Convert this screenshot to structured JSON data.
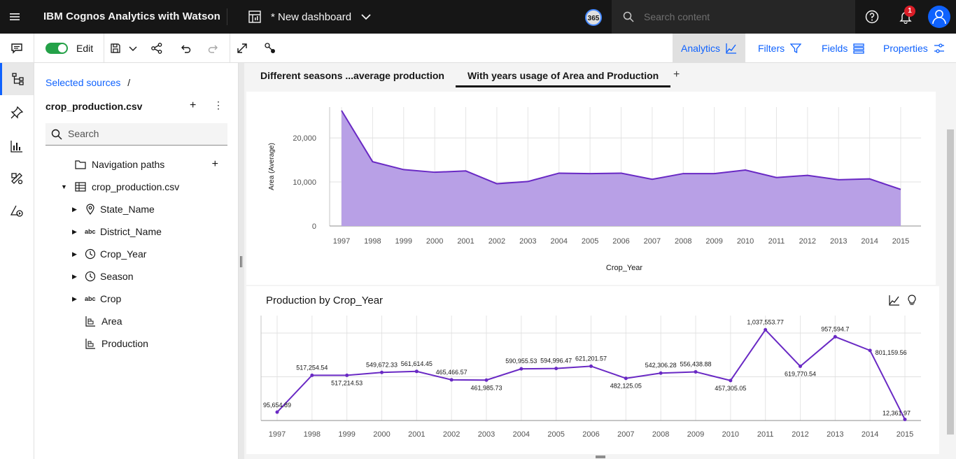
{
  "header": {
    "brand": "IBM Cognos Analytics with Watson",
    "dashboard_title": "* New dashboard",
    "badge_365": "365",
    "search_placeholder": "Search content",
    "notification_count": "1"
  },
  "toolbar": {
    "edit_label": "Edit",
    "analytics_label": "Analytics",
    "filters_label": "Filters",
    "fields_label": "Fields",
    "properties_label": "Properties"
  },
  "sources": {
    "breadcrumb_link": "Selected sources",
    "breadcrumb_sep": "/",
    "source_name": "crop_production.csv",
    "search_placeholder": "Search",
    "navigation_paths": "Navigation paths",
    "table_name": "crop_production.csv",
    "fields": [
      {
        "label": "State_Name",
        "icon": "location-icon"
      },
      {
        "label": "District_Name",
        "icon": "abc-icon"
      },
      {
        "label": "Crop_Year",
        "icon": "clock-icon"
      },
      {
        "label": "Season",
        "icon": "clock-icon"
      },
      {
        "label": "Crop",
        "icon": "abc-icon"
      },
      {
        "label": "Area",
        "icon": "measure-icon"
      },
      {
        "label": "Production",
        "icon": "measure-icon"
      }
    ]
  },
  "tabs": [
    {
      "label": "Different seasons ...average production"
    },
    {
      "label": "With years usage of Area and Production"
    }
  ],
  "chart_data": [
    {
      "type": "area",
      "title": "",
      "xlabel": "Crop_Year",
      "ylabel": "Area (Average)",
      "ylim": [
        0,
        27000
      ],
      "yticks": [
        "0",
        "10,000",
        "20,000"
      ],
      "color": "#b8a0e6",
      "line_color": "#6929c4",
      "x": [
        "1997",
        "1998",
        "1999",
        "2000",
        "2001",
        "2002",
        "2003",
        "2004",
        "2005",
        "2006",
        "2007",
        "2008",
        "2009",
        "2010",
        "2011",
        "2012",
        "2013",
        "2014",
        "2015"
      ],
      "values": [
        26200,
        14600,
        12800,
        12200,
        12500,
        9600,
        10100,
        12000,
        11900,
        12000,
        10600,
        11900,
        11900,
        12700,
        11000,
        11500,
        10500,
        10700,
        8300
      ]
    },
    {
      "type": "line",
      "title": "Production by Crop_Year",
      "xlabel": "",
      "ylabel": "",
      "ylim": [
        0,
        1200000
      ],
      "color": "#6929c4",
      "x": [
        "1997",
        "1998",
        "1999",
        "2000",
        "2001",
        "2002",
        "2003",
        "2004",
        "2005",
        "2006",
        "2007",
        "2008",
        "2009",
        "2010",
        "2011",
        "2012",
        "2013",
        "2014",
        "2015"
      ],
      "values": [
        95654.89,
        517254.54,
        517214.53,
        549672.33,
        561614.45,
        465466.57,
        461985.73,
        590955.53,
        594996.47,
        621201.57,
        482125.05,
        542306.28,
        556438.88,
        457305.05,
        1037553.77,
        619770.54,
        957594.7,
        801159.56,
        12361.97
      ],
      "labels": [
        "95,654.89",
        "517,254.54",
        "517,214.53",
        "549,672.33",
        "561,614.45",
        "465,466.57",
        "461,985.73",
        "590,955.53",
        "594,996.47",
        "621,201.57",
        "482,125.05",
        "542,306.28",
        "556,438.88",
        "457,305.05",
        "1,037,553.77",
        "619,770.54",
        "957,594.7",
        "801,159.56",
        "12,361.97"
      ]
    }
  ]
}
